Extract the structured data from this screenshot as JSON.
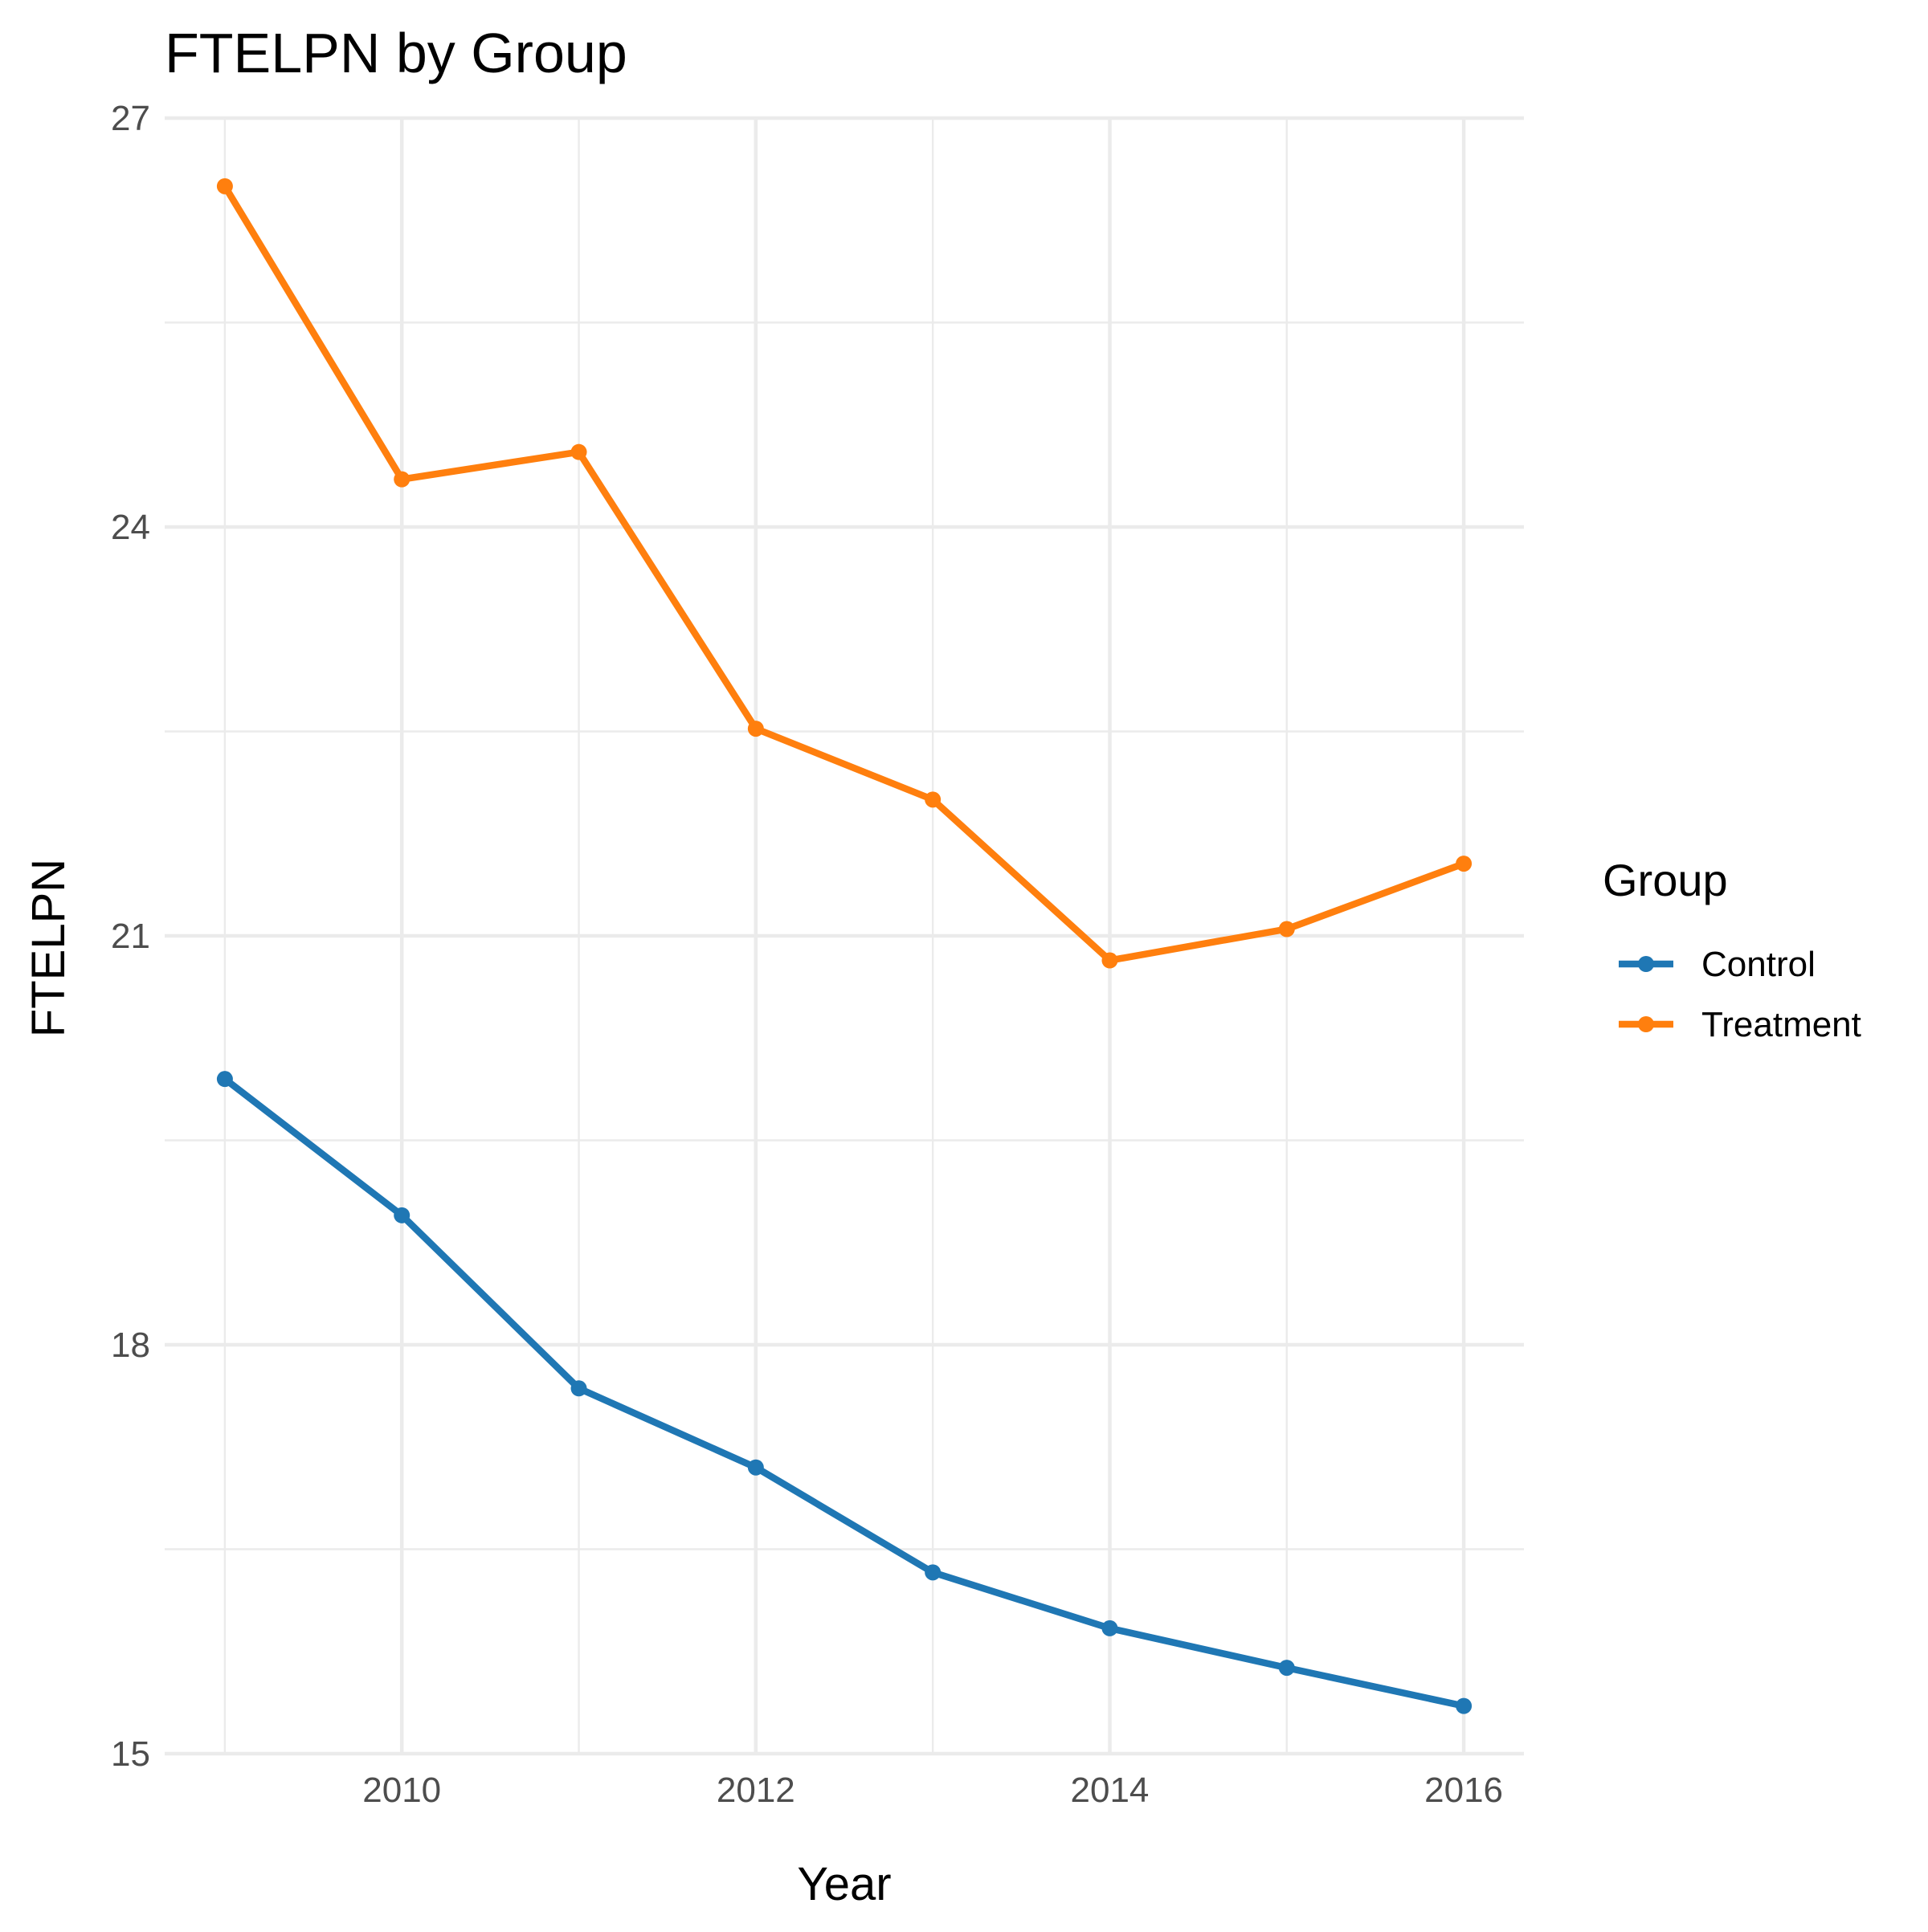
{
  "chart_data": {
    "type": "line",
    "title": "FTELPN by Group",
    "xlabel": "Year",
    "ylabel": "FTELPN",
    "x": [
      2009,
      2010,
      2011,
      2012,
      2013,
      2014,
      2015,
      2016
    ],
    "xlim": [
      2008.66,
      2016.34
    ],
    "ylim": [
      15,
      27
    ],
    "xticks": [
      2010,
      2012,
      2014,
      2016
    ],
    "yticks": [
      15,
      18,
      21,
      24,
      27
    ],
    "grid": true,
    "legend": {
      "title": "Group",
      "position": "right"
    },
    "series": [
      {
        "name": "Control",
        "color": "#1f77b4",
        "values": [
          19.95,
          18.95,
          17.68,
          17.1,
          16.33,
          15.92,
          15.63,
          15.35
        ]
      },
      {
        "name": "Treatment",
        "color": "#ff7f0e",
        "values": [
          26.5,
          24.35,
          24.55,
          22.52,
          22.0,
          20.82,
          21.05,
          21.53
        ]
      }
    ]
  }
}
